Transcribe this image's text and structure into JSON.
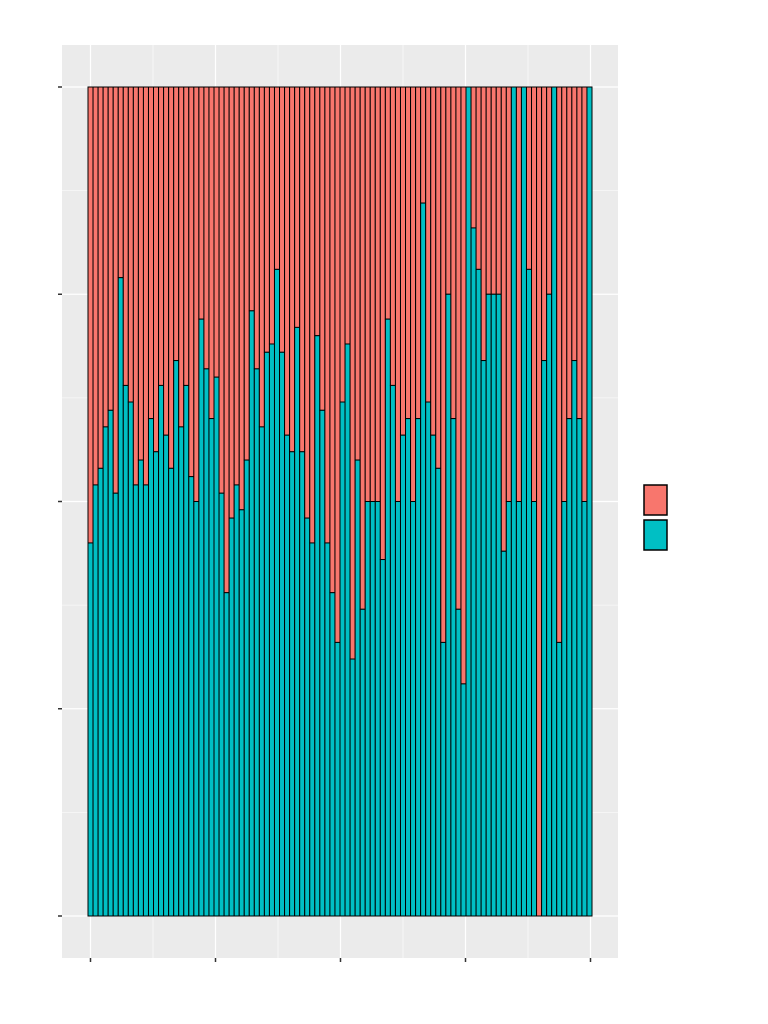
{
  "chart_data": {
    "type": "bar",
    "stacked": true,
    "orientation": "vertical",
    "title": "",
    "xlabel": "",
    "ylabel": "",
    "ylim": [
      0,
      1
    ],
    "xlim": [
      0,
      100
    ],
    "grid": true,
    "legend_position": "right",
    "colors": {
      "panel_background": "#EBEBEB",
      "grid": "#FFFFFF",
      "bar_outline": "#000000",
      "axis_ticks": "#333333",
      "top_series": "#F8766D",
      "bottom_series": "#00BFC4"
    },
    "legend": {
      "entries": [
        {
          "color": "#F8766D",
          "label": ""
        },
        {
          "color": "#00BFC4",
          "label": ""
        }
      ]
    },
    "series": [
      {
        "color": "#F8766D",
        "role": "remainder"
      },
      {
        "color": "#00BFC4",
        "role": "fraction"
      }
    ],
    "values": [
      0.45,
      0.52,
      0.54,
      0.59,
      0.61,
      0.51,
      0.77,
      0.64,
      0.62,
      0.52,
      0.55,
      0.52,
      0.6,
      0.56,
      0.64,
      0.58,
      0.54,
      0.67,
      0.59,
      0.64,
      0.53,
      0.5,
      0.72,
      0.66,
      0.6,
      0.65,
      0.51,
      0.39,
      0.48,
      0.52,
      0.49,
      0.55,
      0.73,
      0.66,
      0.59,
      0.68,
      0.69,
      0.78,
      0.68,
      0.58,
      0.56,
      0.71,
      0.56,
      0.48,
      0.45,
      0.7,
      0.61,
      0.45,
      0.39,
      0.33,
      0.62,
      0.69,
      0.31,
      0.55,
      0.37,
      0.5,
      0.5,
      0.5,
      0.43,
      0.72,
      0.64,
      0.5,
      0.58,
      0.6,
      0.5,
      0.6,
      0.86,
      0.62,
      0.58,
      0.54,
      0.33,
      0.75,
      0.6,
      0.37,
      0.28,
      1.0,
      0.83,
      0.78,
      0.67,
      0.75,
      0.75,
      0.75,
      0.44,
      0.5,
      1.0,
      0.5,
      1.0,
      0.78,
      0.5,
      0.0,
      0.67,
      0.75,
      1.0,
      0.33,
      0.5,
      0.6,
      0.67,
      0.6,
      0.5,
      1.0
    ],
    "x_ticks": [
      0,
      25,
      50,
      75,
      100
    ],
    "y_ticks": [
      0,
      0.25,
      0.5,
      0.75,
      1.0
    ]
  }
}
